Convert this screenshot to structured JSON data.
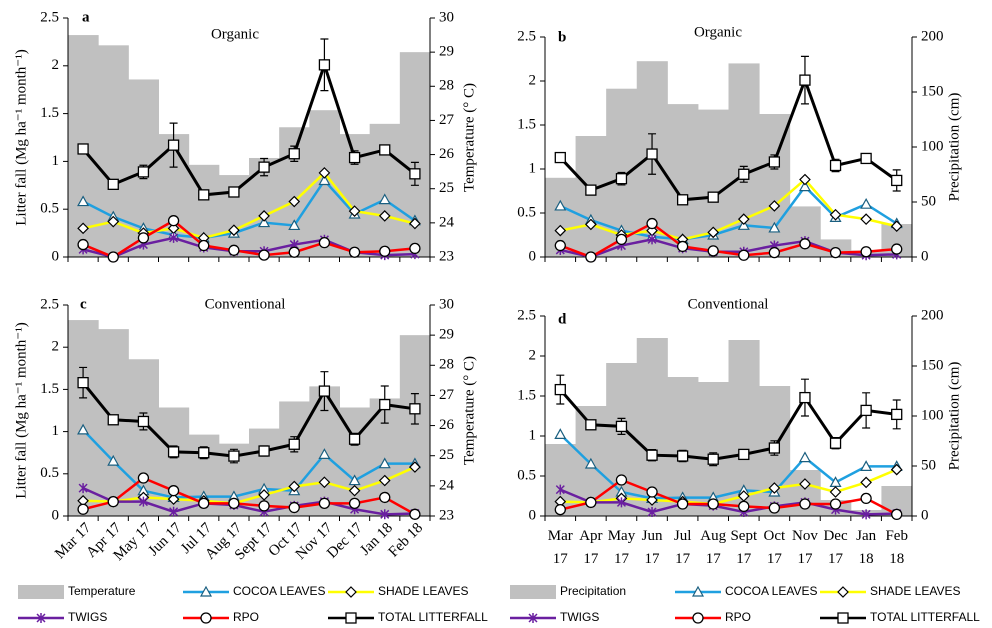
{
  "chart_data": [
    {
      "type": "combo",
      "label": "a",
      "title": "Organic",
      "y_label": "Litter fall (Mg ha⁻¹ month⁻¹)",
      "y2_label": "Temperature (° C)",
      "ylim": [
        0,
        2.5
      ],
      "yticks": [
        0,
        0.5,
        1,
        1.5,
        2,
        2.5
      ],
      "y2lim": [
        23,
        30
      ],
      "y2ticks": [
        23,
        24,
        25,
        26,
        27,
        28,
        29,
        30
      ],
      "series": [
        {
          "type": "bar",
          "axis": "y2",
          "color": "#c0c0c0",
          "values": [
            29.5,
            29.2,
            28.2,
            26.6,
            25.7,
            25.4,
            25.9,
            26.8,
            27.3,
            26.6,
            26.9,
            29.0
          ]
        },
        {
          "type": "line",
          "marker": "triangle",
          "color": "#1fa0e0",
          "values": [
            0.58,
            0.42,
            0.3,
            0.23,
            0.2,
            0.25,
            0.36,
            0.33,
            0.8,
            0.45,
            0.6,
            0.38
          ]
        },
        {
          "type": "line",
          "marker": "diamond",
          "color": "#ffff00",
          "values": [
            0.3,
            0.37,
            0.25,
            0.3,
            0.2,
            0.28,
            0.43,
            0.58,
            0.88,
            0.48,
            0.43,
            0.35
          ]
        },
        {
          "type": "line",
          "marker": "x",
          "color": "#6a1fa0",
          "values": [
            0.08,
            0.0,
            0.13,
            0.2,
            0.1,
            0.06,
            0.06,
            0.13,
            0.18,
            0.05,
            0.02,
            0.03
          ]
        },
        {
          "type": "line",
          "marker": "circle",
          "color": "#ff0000",
          "values": [
            0.13,
            0.0,
            0.2,
            0.38,
            0.12,
            0.07,
            0.02,
            0.05,
            0.15,
            0.05,
            0.06,
            0.09
          ]
        },
        {
          "type": "line",
          "marker": "square",
          "color": "#000000",
          "values": [
            1.13,
            0.76,
            0.89,
            1.17,
            0.65,
            0.68,
            0.94,
            1.08,
            2.01,
            1.04,
            1.12,
            0.87
          ],
          "errors": [
            0.05,
            0.03,
            0.07,
            0.23,
            0.05,
            0.04,
            0.09,
            0.08,
            0.27,
            0.07,
            0.05,
            0.12
          ]
        }
      ]
    },
    {
      "type": "combo",
      "label": "b",
      "title": "Organic",
      "y2_label": "Precipitation (cm)",
      "ylim": [
        0,
        2.5
      ],
      "yticks": [
        0,
        0.5,
        1,
        1.5,
        2,
        2.5
      ],
      "y2lim": [
        0,
        200
      ],
      "y2ticks": [
        0,
        50,
        100,
        150,
        200
      ],
      "series": [
        {
          "type": "bar",
          "axis": "y2",
          "color": "#c0c0c0",
          "values": [
            72,
            110,
            153,
            178,
            139,
            134,
            176,
            130,
            46,
            16,
            6,
            30
          ]
        },
        {
          "type": "line",
          "marker": "triangle",
          "color": "#1fa0e0",
          "values": [
            0.58,
            0.42,
            0.3,
            0.23,
            0.2,
            0.25,
            0.36,
            0.33,
            0.8,
            0.45,
            0.6,
            0.38
          ]
        },
        {
          "type": "line",
          "marker": "diamond",
          "color": "#ffff00",
          "values": [
            0.3,
            0.37,
            0.25,
            0.3,
            0.2,
            0.28,
            0.43,
            0.58,
            0.88,
            0.48,
            0.43,
            0.35
          ]
        },
        {
          "type": "line",
          "marker": "x",
          "color": "#6a1fa0",
          "values": [
            0.08,
            0.0,
            0.13,
            0.2,
            0.1,
            0.06,
            0.06,
            0.13,
            0.18,
            0.05,
            0.02,
            0.03
          ]
        },
        {
          "type": "line",
          "marker": "circle",
          "color": "#ff0000",
          "values": [
            0.13,
            0.0,
            0.2,
            0.38,
            0.12,
            0.07,
            0.02,
            0.05,
            0.15,
            0.05,
            0.06,
            0.09
          ]
        },
        {
          "type": "line",
          "marker": "square",
          "color": "#000000",
          "values": [
            1.13,
            0.76,
            0.89,
            1.17,
            0.65,
            0.68,
            0.94,
            1.08,
            2.01,
            1.04,
            1.12,
            0.87
          ],
          "errors": [
            0.05,
            0.03,
            0.07,
            0.23,
            0.05,
            0.04,
            0.09,
            0.08,
            0.27,
            0.07,
            0.05,
            0.12
          ]
        }
      ]
    },
    {
      "type": "combo",
      "label": "c",
      "title": "Conventional",
      "y_label": "Litter fall (Mg ha⁻¹ month⁻¹)",
      "y2_label": "Temperature (° C)",
      "categories": [
        "Mar 17",
        "Apr 17",
        "May 17",
        "Jun 17",
        "Jul 17",
        "Aug 17",
        "Sept 17",
        "Oct 17",
        "Nov 17",
        "Dec 17",
        "Jan 18",
        "Feb 18"
      ],
      "ylim": [
        0,
        2.5
      ],
      "yticks": [
        0,
        0.5,
        1,
        1.5,
        2,
        2.5
      ],
      "y2lim": [
        23,
        30
      ],
      "y2ticks": [
        23,
        24,
        25,
        26,
        27,
        28,
        29,
        30
      ],
      "series": [
        {
          "name": "Temperature",
          "type": "bar",
          "axis": "y2",
          "color": "#c0c0c0",
          "values": [
            29.5,
            29.2,
            28.2,
            26.6,
            25.7,
            25.4,
            25.9,
            26.8,
            27.3,
            26.6,
            26.9,
            29.0
          ]
        },
        {
          "name": "COCOA LEAVES",
          "type": "line",
          "marker": "triangle",
          "color": "#1fa0e0",
          "values": [
            1.02,
            0.65,
            0.3,
            0.22,
            0.23,
            0.23,
            0.32,
            0.3,
            0.73,
            0.42,
            0.62,
            0.62
          ]
        },
        {
          "name": "SHADE LEAVES",
          "type": "line",
          "marker": "diamond",
          "color": "#ffff00",
          "values": [
            0.18,
            0.17,
            0.22,
            0.2,
            0.18,
            0.15,
            0.25,
            0.35,
            0.4,
            0.3,
            0.42,
            0.58
          ]
        },
        {
          "name": "TWIGS",
          "type": "line",
          "marker": "x",
          "color": "#6a1fa0",
          "values": [
            0.33,
            0.17,
            0.17,
            0.05,
            0.15,
            0.13,
            0.05,
            0.12,
            0.17,
            0.08,
            0.02,
            0.03
          ]
        },
        {
          "name": "RPO",
          "type": "line",
          "marker": "circle",
          "color": "#ff0000",
          "values": [
            0.08,
            0.17,
            0.45,
            0.3,
            0.15,
            0.15,
            0.12,
            0.1,
            0.15,
            0.15,
            0.22,
            0.02
          ]
        },
        {
          "name": "TOTAL LITTERFALL",
          "type": "line",
          "marker": "square",
          "color": "#000000",
          "values": [
            1.58,
            1.14,
            1.12,
            0.76,
            0.75,
            0.71,
            0.77,
            0.85,
            1.48,
            0.91,
            1.32,
            1.27
          ],
          "errors": [
            0.18,
            0.05,
            0.1,
            0.07,
            0.07,
            0.08,
            0.06,
            0.09,
            0.23,
            0.07,
            0.22,
            0.18
          ]
        }
      ]
    },
    {
      "type": "combo",
      "label": "d",
      "title": "Conventional",
      "y2_label": "Precipitation (cm)",
      "categories": [
        "Mar 17",
        "Apr 17",
        "May 17",
        "Jun 17",
        "Jul 17",
        "Aug 17",
        "Sept 17",
        "Oct 17",
        "Nov 17",
        "Dec 17",
        "Jan 18",
        "Feb 18"
      ],
      "ylim": [
        0,
        2.5
      ],
      "yticks": [
        0,
        0.5,
        1,
        1.5,
        2,
        2.5
      ],
      "y2lim": [
        0,
        200
      ],
      "y2ticks": [
        0,
        50,
        100,
        150,
        200
      ],
      "series": [
        {
          "name": "Precipitation",
          "type": "bar",
          "axis": "y2",
          "color": "#c0c0c0",
          "values": [
            72,
            110,
            153,
            178,
            139,
            134,
            176,
            130,
            46,
            16,
            6,
            30
          ]
        },
        {
          "name": "COCOA LEAVES",
          "type": "line",
          "marker": "triangle",
          "color": "#1fa0e0",
          "values": [
            1.02,
            0.65,
            0.3,
            0.22,
            0.23,
            0.23,
            0.32,
            0.3,
            0.73,
            0.42,
            0.62,
            0.62
          ]
        },
        {
          "name": "SHADE LEAVES",
          "type": "line",
          "marker": "diamond",
          "color": "#ffff00",
          "values": [
            0.18,
            0.17,
            0.22,
            0.2,
            0.18,
            0.15,
            0.25,
            0.35,
            0.4,
            0.3,
            0.42,
            0.58
          ]
        },
        {
          "name": "TWIGS",
          "type": "line",
          "marker": "x",
          "color": "#6a1fa0",
          "values": [
            0.33,
            0.17,
            0.17,
            0.05,
            0.15,
            0.13,
            0.05,
            0.12,
            0.17,
            0.08,
            0.02,
            0.03
          ]
        },
        {
          "name": "RPO",
          "type": "line",
          "marker": "circle",
          "color": "#ff0000",
          "values": [
            0.08,
            0.17,
            0.45,
            0.3,
            0.15,
            0.15,
            0.12,
            0.1,
            0.15,
            0.15,
            0.22,
            0.02
          ]
        },
        {
          "name": "TOTAL LITTERFALL",
          "type": "line",
          "marker": "square",
          "color": "#000000",
          "values": [
            1.58,
            1.14,
            1.12,
            0.76,
            0.75,
            0.71,
            0.77,
            0.85,
            1.48,
            0.91,
            1.32,
            1.27
          ],
          "errors": [
            0.18,
            0.05,
            0.1,
            0.07,
            0.07,
            0.08,
            0.06,
            0.09,
            0.23,
            0.07,
            0.22,
            0.18
          ]
        }
      ]
    }
  ]
}
